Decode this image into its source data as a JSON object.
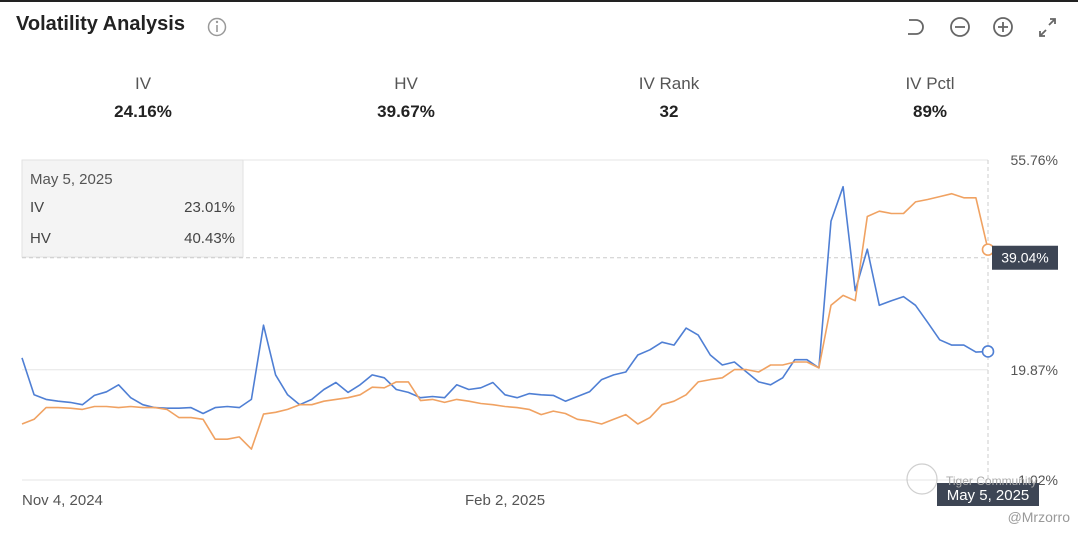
{
  "header": {
    "title": "Volatility Analysis"
  },
  "stats": [
    {
      "label": "IV",
      "value": "24.16%"
    },
    {
      "label": "HV",
      "value": "39.67%"
    },
    {
      "label": "IV Rank",
      "value": "32"
    },
    {
      "label": "IV Pctl",
      "value": "89%"
    }
  ],
  "tooltip": {
    "date": "May 5, 2025",
    "rows": [
      {
        "name": "IV",
        "value": "23.01%"
      },
      {
        "name": "HV",
        "value": "40.43%"
      }
    ]
  },
  "watermark": {
    "brand": "Tiger Community",
    "user": "@Mrzorro"
  },
  "chart_data": {
    "type": "line",
    "categories": [
      "Nov 4, 2024",
      null,
      null,
      null,
      null,
      null,
      null,
      null,
      null,
      null,
      null,
      null,
      null,
      null,
      null,
      null,
      null,
      null,
      null,
      null,
      null,
      null,
      null,
      null,
      null,
      null,
      null,
      null,
      null,
      null,
      null,
      null,
      null,
      null,
      null,
      null,
      null,
      null,
      null,
      null,
      "Feb 2, 2025",
      null,
      null,
      null,
      null,
      null,
      null,
      null,
      null,
      null,
      null,
      null,
      null,
      null,
      null,
      null,
      null,
      null,
      null,
      null,
      null,
      null,
      null,
      null,
      null,
      null,
      null,
      null,
      null,
      null,
      null,
      null,
      null,
      null,
      null,
      null,
      null,
      null,
      null,
      null,
      "May 5, 2025"
    ],
    "series": [
      {
        "name": "IV",
        "color": "#4f7fd4",
        "values": [
          21.9,
          15.6,
          14.8,
          14.5,
          14.3,
          13.9,
          15.5,
          16.1,
          17.3,
          15.1,
          13.9,
          13.4,
          13.3,
          13.3,
          13.4,
          12.4,
          13.4,
          13.6,
          13.4,
          14.8,
          27.5,
          19.0,
          15.6,
          13.9,
          14.8,
          16.5,
          17.7,
          16.0,
          17.3,
          19.0,
          18.5,
          16.5,
          16.0,
          15.1,
          15.3,
          15.1,
          17.3,
          16.5,
          16.8,
          17.7,
          15.6,
          15.1,
          15.8,
          15.6,
          15.5,
          14.5,
          15.3,
          16.1,
          18.2,
          19.0,
          19.5,
          22.4,
          23.3,
          24.6,
          24.1,
          27.0,
          25.8,
          22.4,
          20.7,
          21.2,
          19.5,
          17.8,
          17.3,
          18.5,
          21.6,
          21.6,
          20.2,
          45.3,
          51.2,
          33.4,
          40.5,
          30.9,
          31.7,
          32.4,
          30.9,
          28.0,
          25.0,
          24.1,
          24.1,
          22.9,
          23.01
        ]
      },
      {
        "name": "HV",
        "color": "#f0a262",
        "values": [
          10.6,
          11.4,
          13.4,
          13.4,
          13.3,
          13.1,
          13.6,
          13.6,
          13.4,
          13.6,
          13.4,
          13.4,
          13.1,
          11.7,
          11.7,
          11.4,
          8.0,
          8.0,
          8.4,
          6.3,
          12.3,
          12.6,
          13.1,
          13.9,
          13.9,
          14.5,
          14.8,
          15.1,
          15.6,
          16.9,
          16.8,
          17.8,
          17.8,
          14.6,
          14.8,
          14.3,
          14.8,
          14.5,
          14.1,
          13.9,
          13.6,
          13.4,
          13.1,
          12.2,
          12.8,
          12.4,
          11.4,
          11.1,
          10.6,
          11.4,
          12.2,
          10.6,
          11.7,
          13.9,
          14.5,
          15.6,
          17.8,
          18.2,
          18.5,
          19.9,
          19.9,
          19.5,
          20.7,
          20.7,
          21.2,
          21.2,
          20.2,
          30.9,
          32.6,
          31.7,
          46.1,
          47.0,
          46.6,
          46.6,
          48.6,
          49.0,
          49.5,
          50.0,
          49.3,
          49.3,
          40.43
        ]
      }
    ],
    "ylim": [
      1.02,
      55.76
    ],
    "yticks": [
      {
        "value": 1.02,
        "label": "1.02%"
      },
      {
        "value": 19.87,
        "label": "19.87%"
      },
      {
        "value": 55.76,
        "label": "55.76%"
      }
    ],
    "grid": true,
    "crosshair": {
      "value": 39.04,
      "label": "39.04%"
    }
  }
}
